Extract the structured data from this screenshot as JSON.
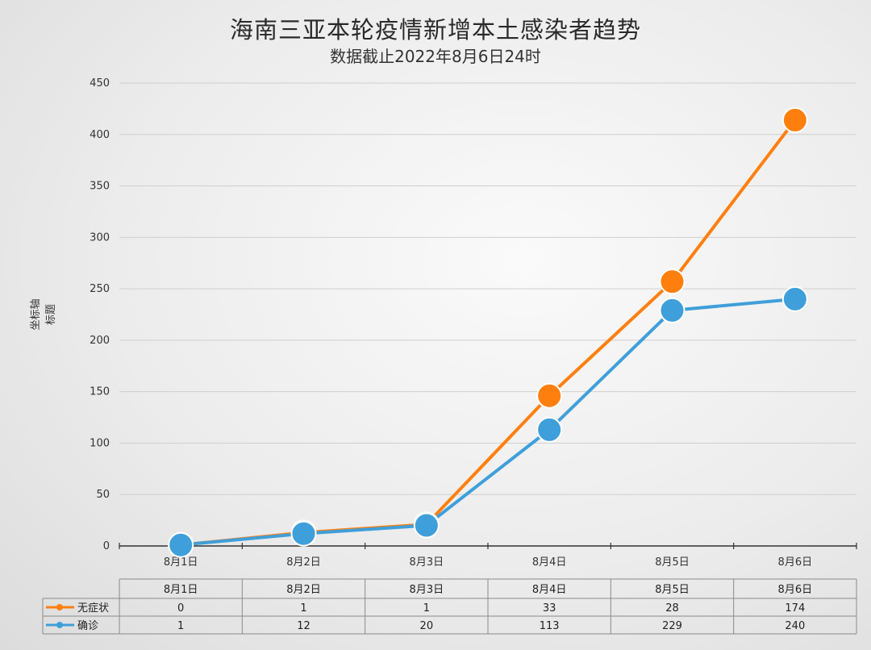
{
  "chart_data": {
    "type": "line",
    "title": "海南三亚本轮疫情新增本土感染者趋势",
    "subtitle": "数据截止2022年8月6日24时",
    "ylabel": "坐标轴标题",
    "xlabel": "",
    "categories": [
      "8月1日",
      "8月2日",
      "8月3日",
      "8月4日",
      "8月5日",
      "8月6日"
    ],
    "yticks": [
      0,
      50,
      100,
      150,
      200,
      250,
      300,
      350,
      400,
      450
    ],
    "ylim": [
      0,
      450
    ],
    "grid": true,
    "legend": "data-table-left",
    "series": [
      {
        "name": "无症状",
        "color": "#FF7F0E",
        "values": [
          1,
          13,
          21,
          146,
          257,
          414
        ],
        "table_values": [
          "0",
          "1",
          "1",
          "33",
          "28",
          "174"
        ]
      },
      {
        "name": "确诊",
        "color": "#3F9FDA",
        "values": [
          1,
          12,
          20,
          113,
          229,
          240
        ],
        "table_values": [
          "1",
          "12",
          "20",
          "113",
          "229",
          "240"
        ]
      }
    ]
  }
}
